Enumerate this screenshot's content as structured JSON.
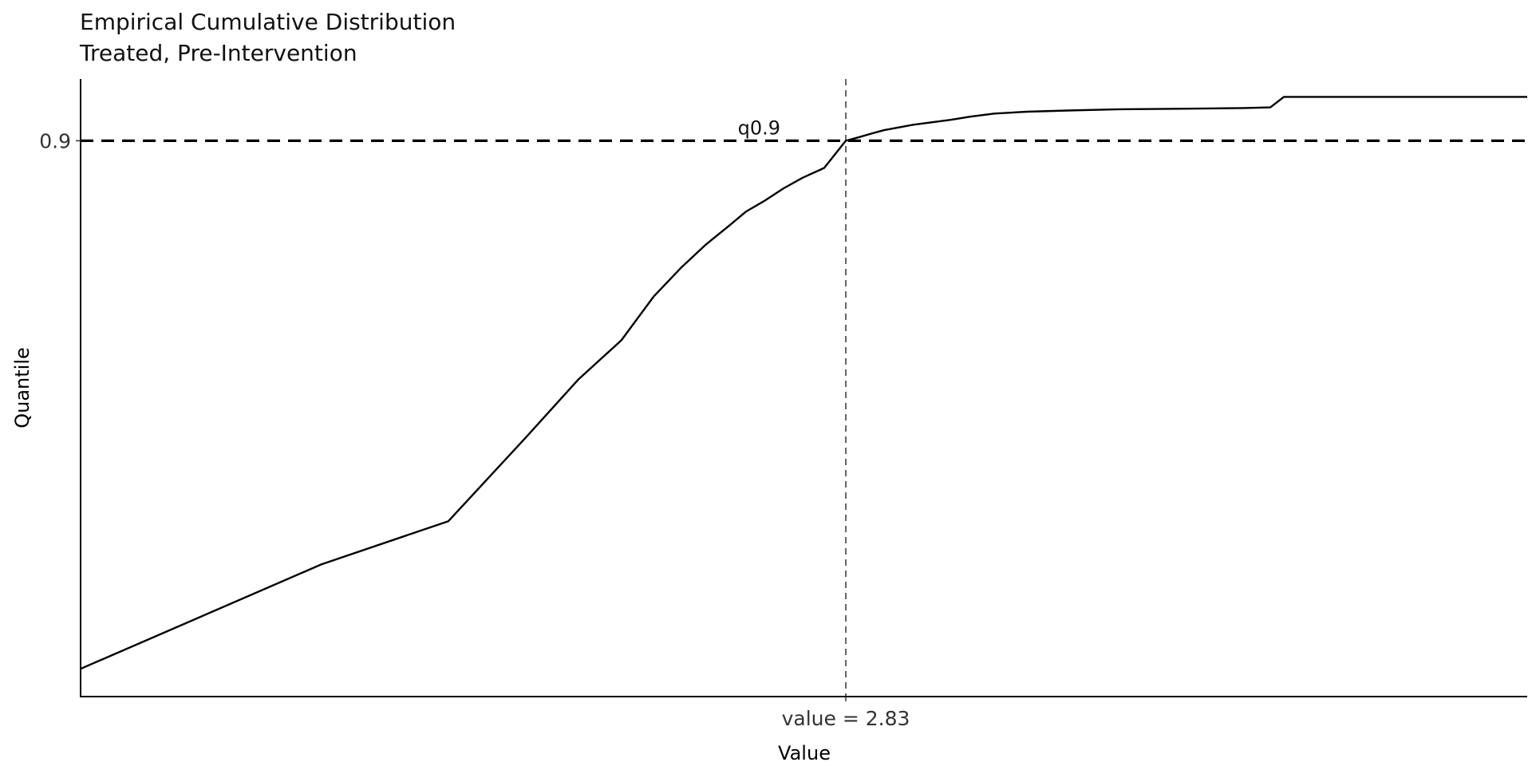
{
  "chart_data": {
    "type": "line",
    "title": "Empirical Cumulative Distribution",
    "subtitle": "Treated, Pre-Intervention",
    "xlabel": "Value",
    "ylabel": "Quantile",
    "xlim": [
      0.0,
      5.35
    ],
    "ylim": [
      0.0,
      1.0
    ],
    "grid": false,
    "legend": "none",
    "y_ticks": [
      {
        "value": 0.9,
        "label": "0.9"
      }
    ],
    "x_ticks": [
      {
        "value": 2.83,
        "label": "value = 2.83"
      }
    ],
    "reference_lines": {
      "horizontal": {
        "y": 0.9,
        "label": "q0.9",
        "style": "dashed"
      },
      "vertical": {
        "x": 2.83,
        "style": "dashed"
      }
    },
    "series": [
      {
        "color": "#000000",
        "x": [
          0.0,
          0.89,
          1.36,
          1.65,
          1.84,
          2.0,
          2.12,
          2.22,
          2.31,
          2.4,
          2.46,
          2.53,
          2.6,
          2.67,
          2.75,
          2.83,
          2.88,
          2.92,
          2.97,
          3.02,
          3.08,
          3.15,
          3.22,
          3.29,
          3.38,
          3.5,
          3.65,
          3.85,
          4.1,
          4.3,
          4.4,
          4.45,
          5.35
        ],
        "y": [
          0.045,
          0.214,
          0.284,
          0.421,
          0.513,
          0.577,
          0.648,
          0.694,
          0.731,
          0.763,
          0.785,
          0.803,
          0.823,
          0.84,
          0.856,
          0.9,
          0.906,
          0.911,
          0.917,
          0.921,
          0.926,
          0.93,
          0.934,
          0.939,
          0.944,
          0.947,
          0.949,
          0.951,
          0.952,
          0.953,
          0.954,
          0.971,
          0.971
        ]
      }
    ]
  }
}
